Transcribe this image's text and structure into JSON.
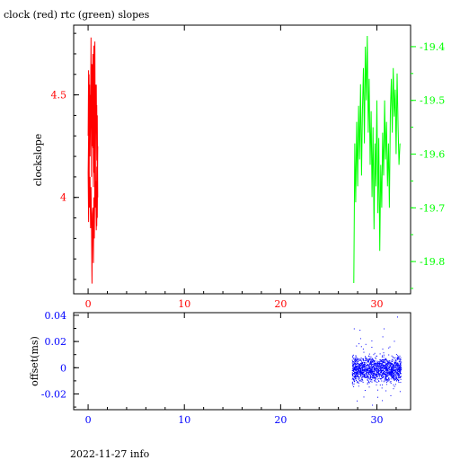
{
  "page": {
    "title": "clock (red) rtc (green) slopes",
    "footer": "2022-11-27 info"
  },
  "colors": {
    "clock": "#ff0000",
    "rtc": "#00ff00",
    "offset": "#0000ff",
    "axis": "#000000"
  },
  "chart_data": [
    {
      "type": "line",
      "title": "clock (red) rtc (green) slopes",
      "xlabel": "",
      "ylabel": "clockslope",
      "xlim": [
        -1.5,
        33.5
      ],
      "ylim": [
        3.53,
        4.84
      ],
      "y2lim": [
        -19.86,
        -19.36
      ],
      "x_ticks": [
        0,
        10,
        20,
        30
      ],
      "y_ticks": [
        4,
        4.5
      ],
      "y_tick_labels": [
        "4",
        "4.5"
      ],
      "y2_ticks": [
        -19.4,
        -19.5,
        -19.6,
        -19.7,
        -19.8
      ],
      "y2_tick_labels": [
        "-19.4",
        "-19.5",
        "-19.6",
        "-19.7",
        "-19.8"
      ],
      "grid": false,
      "series": [
        {
          "name": "clock",
          "axis": "left",
          "color": "#ff0000",
          "x": [
            0.0,
            0.05,
            0.1,
            0.15,
            0.2,
            0.25,
            0.3,
            0.35,
            0.4,
            0.45,
            0.5,
            0.55,
            0.6,
            0.65,
            0.7,
            0.75,
            0.8,
            0.85,
            0.9,
            0.95,
            1.0,
            0.95,
            0.9,
            0.85,
            0.8,
            0.75,
            0.7,
            0.65,
            0.6,
            0.55,
            0.5,
            0.45,
            0.4,
            0.35,
            0.3,
            0.25,
            0.2,
            0.15,
            0.1,
            0.05,
            0.0,
            0.05,
            0.1,
            0.15,
            0.2,
            0.25,
            0.3,
            0.35,
            0.4,
            0.45,
            0.5,
            0.55,
            0.6,
            0.65,
            0.7,
            0.75,
            0.8,
            0.85,
            0.9,
            0.95,
            1.0,
            0.95,
            0.9,
            0.85,
            0.8,
            0.75,
            0.7,
            0.65,
            0.6,
            0.55,
            0.5
          ],
          "y": [
            4.3,
            4.62,
            3.96,
            4.55,
            4.2,
            4.4,
            4.78,
            4.1,
            4.65,
            4.25,
            4.7,
            4.05,
            4.6,
            4.3,
            4.76,
            4.15,
            4.55,
            4.32,
            4.45,
            4.1,
            4.25,
            3.9,
            4.15,
            3.84,
            4.05,
            3.95,
            4.12,
            3.8,
            4.0,
            3.68,
            3.95,
            3.92,
            3.58,
            3.9,
            4.05,
            3.85,
            4.1,
            3.95,
            4.2,
            3.88,
            4.12,
            4.3,
            4.6,
            4.22,
            4.5,
            4.4,
            4.7,
            4.32,
            4.62,
            4.25,
            4.55,
            4.45,
            4.74,
            4.28,
            4.48,
            4.1,
            4.38,
            4.55,
            4.18,
            4.4,
            4.0,
            4.2,
            3.86,
            4.08,
            3.95,
            4.28,
            4.05,
            4.35,
            4.12,
            4.5,
            4.24
          ]
        },
        {
          "name": "rtc",
          "axis": "right",
          "color": "#00ff00",
          "x": [
            27.6,
            27.7,
            27.8,
            27.9,
            28.0,
            28.1,
            28.2,
            28.3,
            28.4,
            28.5,
            28.6,
            28.7,
            28.8,
            28.9,
            29.0,
            29.1,
            29.2,
            29.3,
            29.4,
            29.5,
            29.6,
            29.7,
            29.8,
            29.9,
            30.0,
            30.1,
            30.2,
            30.3,
            30.4,
            30.5,
            30.6,
            30.7,
            30.8,
            30.9,
            31.0,
            31.1,
            31.2,
            31.3,
            31.4,
            31.5,
            31.6,
            31.7,
            31.8,
            31.9,
            32.0,
            32.1,
            32.2,
            32.3,
            32.4
          ],
          "y": [
            -19.84,
            -19.58,
            -19.69,
            -19.54,
            -19.66,
            -19.51,
            -19.61,
            -19.47,
            -19.64,
            -19.52,
            -19.44,
            -19.58,
            -19.4,
            -19.5,
            -19.38,
            -19.56,
            -19.46,
            -19.62,
            -19.52,
            -19.68,
            -19.55,
            -19.74,
            -19.58,
            -19.66,
            -19.5,
            -19.71,
            -19.57,
            -19.78,
            -19.62,
            -19.7,
            -19.56,
            -19.64,
            -19.5,
            -19.61,
            -19.54,
            -19.66,
            -19.58,
            -19.7,
            -19.52,
            -19.46,
            -19.56,
            -19.44,
            -19.53,
            -19.48,
            -19.6,
            -19.45,
            -19.55,
            -19.62,
            -19.58
          ]
        }
      ]
    },
    {
      "type": "scatter",
      "xlabel": "",
      "ylabel": "offset(ms)",
      "xlim": [
        -1.5,
        33.5
      ],
      "ylim": [
        -0.032,
        0.042
      ],
      "x_ticks": [
        0,
        10,
        20,
        30
      ],
      "y_ticks": [
        0.04,
        0.02,
        0,
        -0.02
      ],
      "y_tick_labels": [
        "0.04",
        "0.02",
        "0",
        "-0.02"
      ],
      "grid": false,
      "series": [
        {
          "name": "offset",
          "color": "#0000ff",
          "x_range": [
            27.4,
            32.5
          ],
          "center": -0.001,
          "core_spread": 0.009,
          "outlier_spread": 0.02,
          "count": 1500,
          "extremes": [
            {
              "x": 27.6,
              "y": 0.03
            },
            {
              "x": 28.2,
              "y": 0.029
            },
            {
              "x": 30.7,
              "y": 0.03
            },
            {
              "x": 32.1,
              "y": 0.039
            },
            {
              "x": 28.6,
              "y": -0.022
            },
            {
              "x": 31.4,
              "y": -0.021
            },
            {
              "x": 27.9,
              "y": -0.025
            }
          ]
        }
      ]
    }
  ]
}
